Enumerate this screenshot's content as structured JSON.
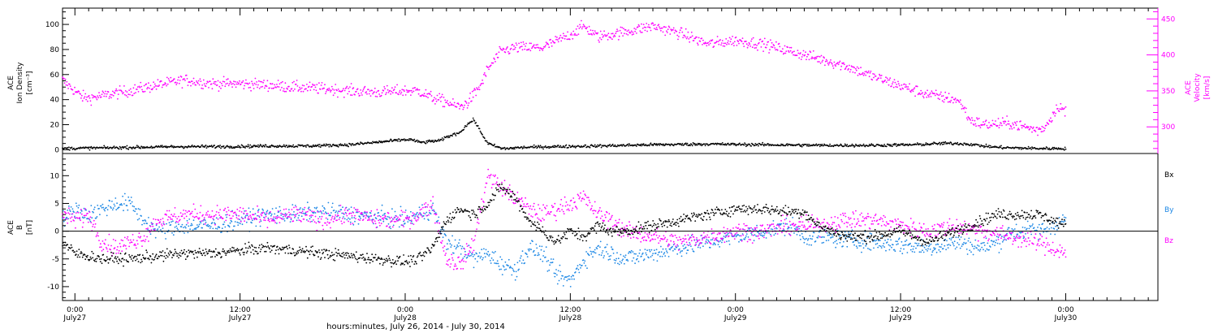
{
  "figure": {
    "xlabel": "hours:minutes, July 26, 2014 - July 30, 2014",
    "x_ticks": [
      {
        "t": 0,
        "time": "0:00",
        "date": "July27"
      },
      {
        "t": 12,
        "time": "12:00",
        "date": "July27"
      },
      {
        "t": 24,
        "time": "0:00",
        "date": "July28"
      },
      {
        "t": 36,
        "time": "12:00",
        "date": "July28"
      },
      {
        "t": 48,
        "time": "0:00",
        "date": "July29"
      },
      {
        "t": 60,
        "time": "12:00",
        "date": "July29"
      },
      {
        "t": 72,
        "time": "0:00",
        "date": "July30"
      }
    ],
    "xlim": [
      -0.9,
      78.7
    ],
    "colors": {
      "axes": "#000000",
      "density": "#000000",
      "velocity": "#ff00ff",
      "bx": "#000000",
      "by": "#1e88e5",
      "bz": "#ff00ff"
    }
  },
  "chart_data": [
    {
      "type": "scatter",
      "panel": "top",
      "ylabel": [
        "ACE",
        "Ion Density",
        "[cm⁻³]"
      ],
      "ylim": [
        -3,
        113
      ],
      "yticks": [
        0,
        20,
        40,
        60,
        80,
        100
      ],
      "series": [
        {
          "name": "density",
          "axis": "left",
          "color": "#000000",
          "x": [
            -0.9,
            2,
            5,
            8,
            11,
            14,
            17,
            20,
            22,
            23,
            24,
            24.5,
            25,
            25.5,
            26,
            26.5,
            27,
            27.5,
            28,
            28.5,
            29,
            29.5,
            30,
            30.5,
            31,
            31.5,
            32,
            33,
            35,
            38,
            42,
            46,
            50,
            54,
            58,
            61,
            62,
            63,
            64,
            65,
            66,
            67,
            68,
            70,
            72
          ],
          "y": [
            1,
            1.5,
            2,
            2.5,
            2.5,
            3,
            3,
            4,
            6,
            7,
            8,
            8,
            6,
            6,
            7,
            7,
            10,
            12,
            14,
            20,
            24,
            14,
            5,
            3,
            1,
            1,
            1.5,
            2,
            2.5,
            3,
            4,
            4.5,
            4,
            3.5,
            3.5,
            4,
            4.5,
            5,
            5,
            4.5,
            3,
            2,
            1.5,
            1,
            1
          ]
        },
        {
          "name": "velocity",
          "axis": "right",
          "color": "#ff00ff",
          "x": [
            -0.9,
            -0.5,
            0,
            0.5,
            1,
            2,
            3,
            4,
            6,
            8,
            10,
            12,
            14,
            16,
            18,
            20,
            22,
            24,
            25,
            26,
            27,
            27.5,
            28,
            28.5,
            29,
            29.5,
            30,
            31,
            32,
            34,
            36,
            37,
            38,
            40,
            42,
            44,
            46,
            48,
            50,
            52,
            54,
            56,
            58,
            60,
            62,
            64,
            64.5,
            65,
            66,
            68,
            69,
            70,
            70.5,
            71,
            71.5,
            72
          ],
          "y": [
            365,
            358,
            350,
            342,
            340,
            343,
            347,
            350,
            358,
            365,
            360,
            360,
            358,
            355,
            353,
            350,
            348,
            350,
            350,
            340,
            335,
            330,
            328,
            333,
            345,
            358,
            380,
            405,
            410,
            410,
            428,
            440,
            425,
            432,
            440,
            430,
            415,
            420,
            415,
            405,
            395,
            385,
            370,
            357,
            345,
            338,
            330,
            310,
            303,
            305,
            300,
            295,
            300,
            315,
            330,
            320
          ]
        }
      ],
      "y2": {
        "label": [
          "ACE",
          "Velocity",
          "[km/s]"
        ],
        "ylim": [
          263,
          465
        ],
        "ticks": [
          300,
          350,
          400,
          450
        ]
      }
    },
    {
      "type": "scatter",
      "panel": "bottom",
      "ylabel": [
        "ACE",
        "B",
        "[nT]"
      ],
      "ylim": [
        -12.5,
        14
      ],
      "yticks": [
        -10,
        -5,
        0,
        5,
        10
      ],
      "legend": [
        {
          "name": "Bx",
          "color": "#000000"
        },
        {
          "name": "By",
          "color": "#1e88e5"
        },
        {
          "name": "Bz",
          "color": "#ff00ff"
        }
      ],
      "series": [
        {
          "name": "Bx",
          "color": "#000000",
          "x": [
            -0.9,
            0,
            2,
            4,
            6,
            8,
            10,
            12,
            14,
            16,
            18,
            20,
            22,
            24,
            25,
            26,
            27,
            28,
            29,
            30,
            31,
            32,
            33,
            34,
            35,
            36,
            37,
            38,
            39,
            40,
            42,
            44,
            46,
            48,
            50,
            52,
            53,
            54,
            56,
            58,
            60,
            62,
            64,
            66,
            67,
            68,
            70,
            72
          ],
          "y": [
            -2,
            -4,
            -5,
            -5,
            -4.5,
            -4,
            -4,
            -3.5,
            -3,
            -3.5,
            -4,
            -4.5,
            -5,
            -5.5,
            -5,
            -3,
            2,
            4,
            3,
            5,
            8,
            6,
            2,
            0,
            -2,
            0,
            -1,
            1,
            0,
            0,
            1,
            2,
            3,
            4,
            4,
            3.5,
            3.5,
            1,
            -1,
            -1,
            0,
            -2,
            0,
            2,
            3,
            3,
            3,
            1
          ]
        },
        {
          "name": "By",
          "color": "#1e88e5",
          "x": [
            -0.9,
            0,
            1,
            2,
            3,
            4,
            5,
            6,
            8,
            10,
            12,
            14,
            16,
            18,
            20,
            22,
            24,
            25,
            26,
            27,
            28,
            29,
            30,
            31,
            32,
            33,
            34,
            35,
            36,
            37,
            38,
            39,
            40,
            42,
            44,
            46,
            48,
            50,
            52,
            53,
            54,
            56,
            58,
            60,
            62,
            64,
            66,
            67,
            68,
            70,
            72
          ],
          "y": [
            2,
            4,
            3,
            4,
            5,
            5,
            2,
            0,
            1,
            1,
            2,
            3,
            3,
            3.5,
            3,
            2.5,
            2,
            3,
            4,
            -2,
            -3,
            -5,
            -4,
            -6,
            -7,
            -3,
            -4,
            -8,
            -9,
            -5,
            -3,
            -4,
            -5,
            -4,
            -3,
            -2,
            -1,
            0,
            1,
            -1,
            -1,
            -1.5,
            -2,
            -2.5,
            -3,
            -2,
            -3,
            -2,
            0,
            0,
            2
          ]
        },
        {
          "name": "Bz",
          "color": "#ff00ff",
          "x": [
            -0.9,
            0,
            1,
            2,
            3,
            4,
            5,
            6,
            8,
            10,
            12,
            14,
            16,
            18,
            20,
            22,
            23,
            24,
            25,
            26,
            27,
            28,
            29,
            30,
            31,
            32,
            33,
            34,
            35,
            36,
            37,
            38,
            39,
            40,
            42,
            44,
            46,
            48,
            50,
            52,
            54,
            56,
            58,
            60,
            62,
            64,
            66,
            68,
            70,
            71,
            72
          ],
          "y": [
            3,
            2,
            3,
            -2,
            -3,
            -2,
            -1,
            2,
            3,
            3,
            3,
            2,
            3,
            2,
            3,
            2,
            2,
            2,
            3,
            5,
            -5,
            -6,
            -2,
            10,
            8,
            6,
            4,
            3,
            4,
            5,
            6,
            3,
            2,
            0,
            -1,
            -2,
            -1,
            0,
            0,
            1,
            1,
            2,
            2,
            1,
            0,
            1,
            0,
            -1,
            -2,
            -3,
            -4
          ]
        }
      ]
    }
  ]
}
